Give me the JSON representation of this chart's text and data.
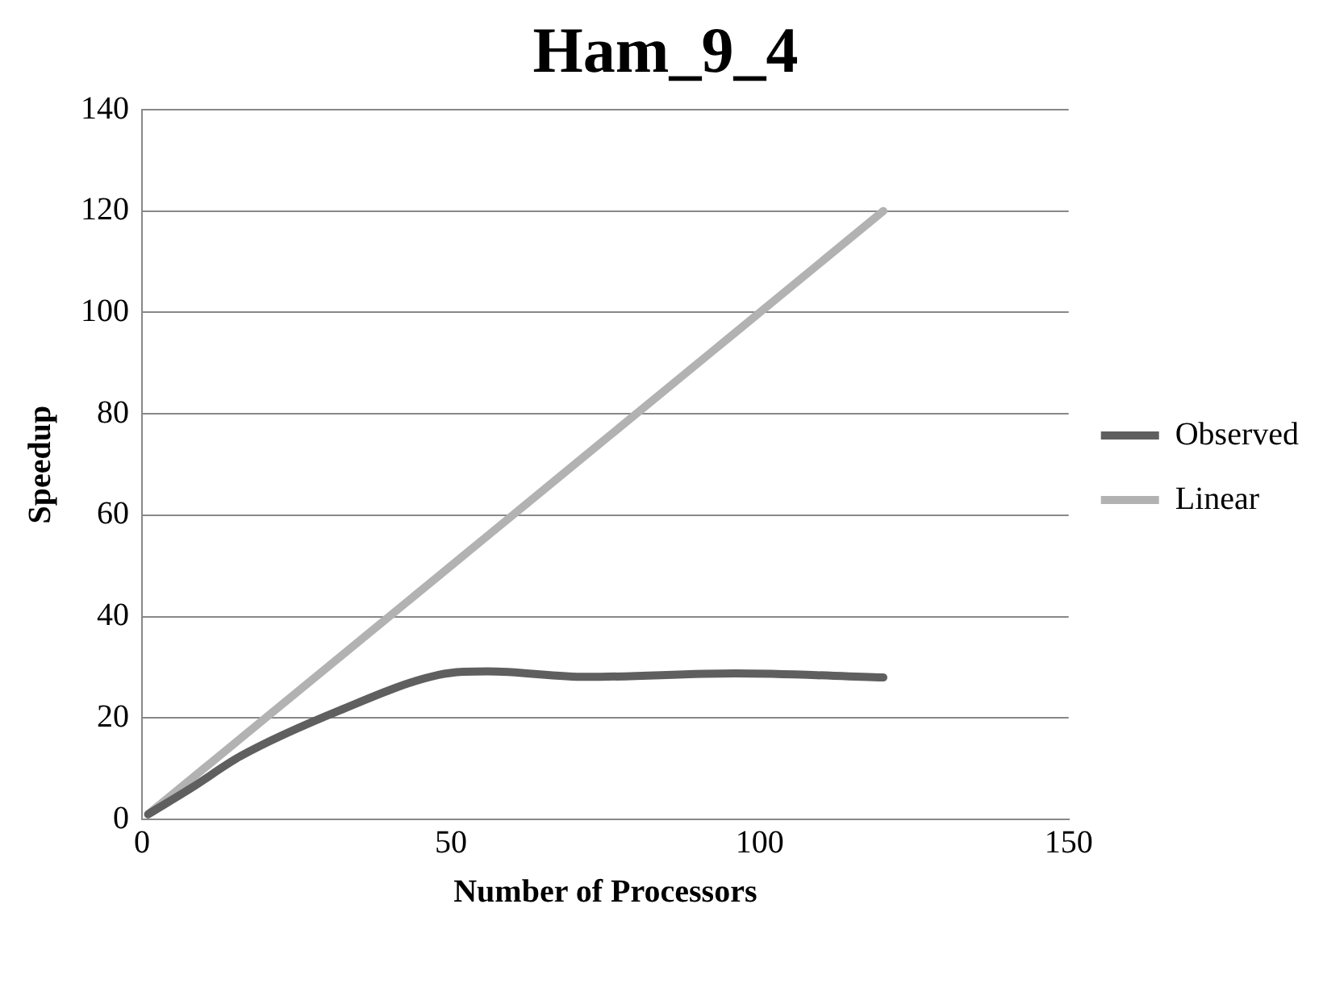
{
  "chart_data": {
    "type": "line",
    "title": "Ham_9_4",
    "xlabel": "Number of Processors",
    "ylabel": "Speedup",
    "xlim": [
      0,
      150
    ],
    "xticks": [
      0,
      50,
      100,
      150
    ],
    "ylim": [
      0,
      140
    ],
    "yticks": [
      0,
      20,
      40,
      60,
      80,
      100,
      120,
      140
    ],
    "grid": "y",
    "legend": "right",
    "marker": "none",
    "series": [
      {
        "name": "Observed",
        "color": "#5f5f5f",
        "x": [
          1,
          8,
          16,
          32,
          48,
          56,
          72,
          96,
          120
        ],
        "values": [
          1,
          6.2,
          12.5,
          21.5,
          28.5,
          29.2,
          28.1,
          28.8,
          28
        ]
      },
      {
        "name": "Linear",
        "color": "#b2b2b2",
        "x": [
          1,
          8,
          16,
          32,
          48,
          56,
          72,
          96,
          120
        ],
        "values": [
          1,
          8,
          16,
          32,
          48,
          56,
          72,
          96,
          120
        ]
      }
    ]
  }
}
